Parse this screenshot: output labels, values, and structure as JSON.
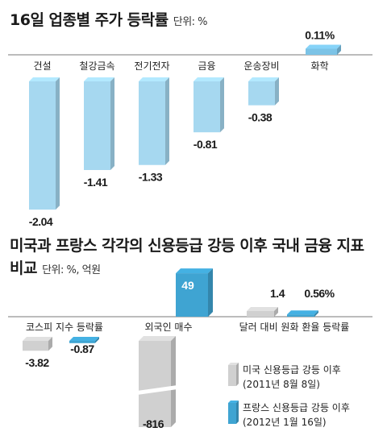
{
  "chart1": {
    "title": "16일 업종별 주가 등락률",
    "unit": "단위: %",
    "chart_data": {
      "type": "bar",
      "categories": [
        "건설",
        "철강금속",
        "전기전자",
        "금융",
        "운송장비",
        "화학"
      ],
      "values": [
        -2.04,
        -1.41,
        -1.33,
        -0.81,
        -0.38,
        0.11
      ],
      "value_labels": [
        "-2.04",
        "-1.41",
        "-1.33",
        "-0.81",
        "-0.38",
        "0.11%"
      ]
    },
    "colors": {
      "bar": "#a6d8f0",
      "bar_dark": "#7cc3e6",
      "axis": "#7a7a7a"
    }
  },
  "chart2": {
    "title_line1": "미국과 프랑스 각각의 신용등급 강등 이후 국내 금융 지표",
    "title_line2": "비교",
    "unit": "단위: %, 억원",
    "chart_data": {
      "type": "bar",
      "categories": [
        "코스피 지수 등락률",
        "외국인 매수",
        "달러 대비 원화 환율 등락률"
      ],
      "series": [
        {
          "name": "미국 신용등급 강등 이후 (2011년 8월 8일)",
          "values": [
            -3.82,
            -816,
            1.4
          ],
          "value_labels": [
            "-3.82",
            "-816",
            "1.4"
          ]
        },
        {
          "name": "프랑스 신용등급 강등 이후 (2012년 1월 16일)",
          "values": [
            -0.87,
            49,
            0.56
          ],
          "value_labels": [
            "-0.87",
            "49",
            "0.56%"
          ]
        }
      ]
    },
    "legend": [
      {
        "line1": "미국 신용등급 강등 이후",
        "line2": "(2011년 8월 8일)"
      },
      {
        "line1": "프랑스 신용등급 강등 이후",
        "line2": "(2012년 1월 16일)"
      }
    ],
    "colors": {
      "us": "#d0d0d0",
      "fr": "#3fa4d2",
      "axis": "#7a7a7a"
    }
  }
}
